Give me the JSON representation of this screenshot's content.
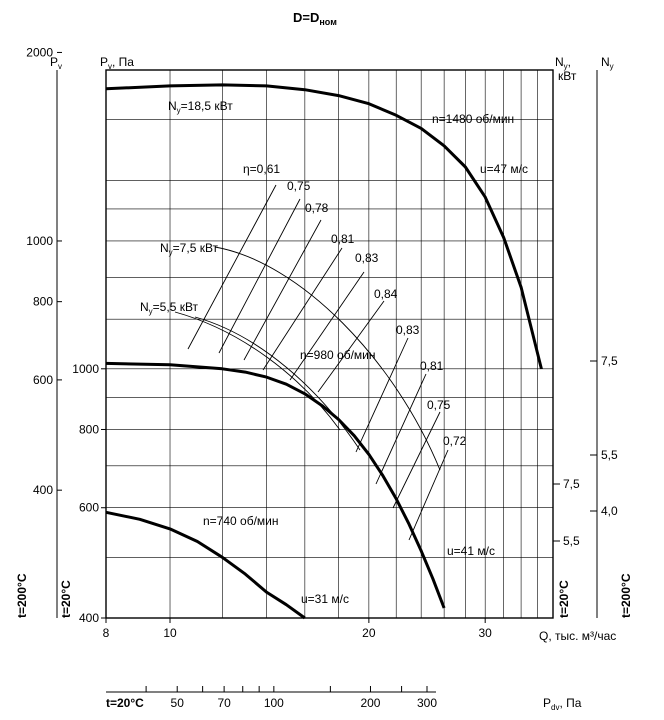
{
  "chart_data": {
    "type": "line",
    "title": "D=D",
    "title_sub": "ном",
    "xlabel": "Q, тыс. м³/час",
    "x_scale": "log",
    "x_ticks": [
      "8",
      "10",
      "20",
      "30"
    ],
    "x_range": [
      8,
      38
    ],
    "outer_left_axis": {
      "label": "P",
      "label_sub": "v",
      "ticks": [
        "2000",
        "1000",
        "800",
        "600",
        "400"
      ]
    },
    "inner_left_axis": {
      "label": "P",
      "label_sub": "v",
      "unit": ", Па",
      "ticks": [
        "1000",
        "800",
        "600",
        "400"
      ]
    },
    "inner_right_axis": {
      "label": "N",
      "label_sub": "y",
      "unit": ",",
      "unit2": "кВт",
      "ticks": [
        "7,5",
        "5,5"
      ]
    },
    "outer_right_axis": {
      "label": "N",
      "label_sub": "y",
      "ticks": [
        "7,5",
        "5,5",
        "4,0"
      ]
    },
    "bottom_axis": {
      "label": "P",
      "label_sub": "dv",
      "unit": ", Па",
      "prefix": "t=20°C",
      "ticks": [
        "50",
        "70",
        "100",
        "200",
        "300"
      ]
    },
    "temp_left_200": "t=200°C",
    "temp_left_20": "t=20°C",
    "temp_right_20": "t=20°C",
    "temp_right_200": "t=200°C",
    "series": [
      {
        "name": "n=1480 об/мин",
        "x": [
          8,
          10,
          12,
          14,
          16,
          18,
          20,
          22,
          24,
          26,
          28,
          30,
          32,
          34,
          36.5
        ],
        "y": [
          2800,
          2830,
          2840,
          2830,
          2790,
          2730,
          2650,
          2540,
          2420,
          2270,
          2100,
          1880,
          1620,
          1350,
          1000
        ]
      },
      {
        "name": "n=980 об/мин",
        "x": [
          8,
          10,
          12,
          13,
          14,
          15,
          16,
          17,
          18,
          19,
          20,
          21,
          22,
          23,
          24,
          25,
          26
        ],
        "y": [
          1020,
          1015,
          1000,
          988,
          970,
          945,
          912,
          873,
          830,
          782,
          730,
          675,
          620,
          565,
          512,
          462,
          415
        ]
      },
      {
        "name": "n=740 об/мин",
        "x": [
          8,
          9,
          10,
          11,
          12,
          13,
          14,
          15,
          16
        ],
        "y": [
          590,
          575,
          555,
          530,
          500,
          470,
          440,
          420,
          400
        ]
      }
    ],
    "annotations": {
      "power_labels": [
        {
          "pre": "N",
          "sub": "y",
          "text": "=18,5 кВт"
        },
        {
          "pre": "N",
          "sub": "y",
          "text": "=7,5 кВт"
        },
        {
          "pre": "N",
          "sub": "y",
          "text": "=5,5 кВт"
        }
      ],
      "eta_labels": [
        "η=0,61",
        "0,75",
        "0,78",
        "0,81",
        "0,83",
        "0,84",
        "0,83",
        "0,81",
        "0,75",
        "0,72"
      ],
      "speed_labels": [
        "u=47 м/с",
        "u=41 м/с",
        "u=31 м/с"
      ]
    },
    "grid": true,
    "legend": "none"
  }
}
